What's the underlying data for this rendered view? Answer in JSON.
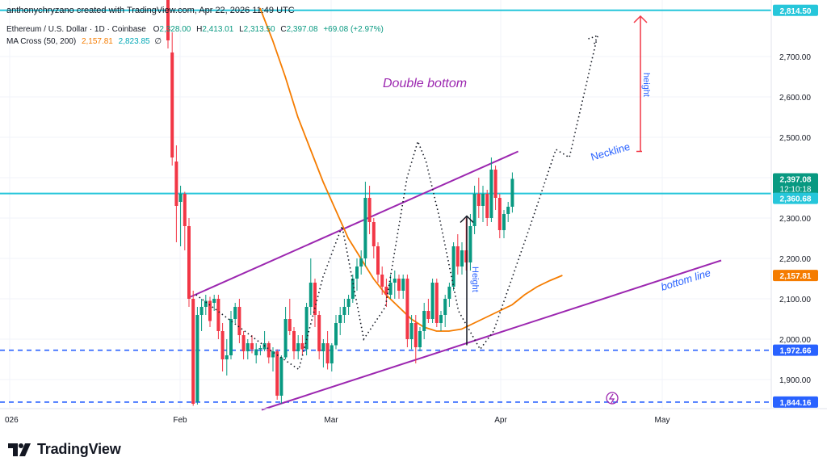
{
  "header": {
    "credit": "anthonychryzano created with TradingView.com, Apr 22, 2026 11:49 UTC",
    "symbol": "Ethereum / U.S. Dollar · 1D · Coinbase",
    "ohlc": {
      "o_label": "O",
      "o_value": "2,328.00",
      "h_label": "H",
      "h_value": "2,413.01",
      "l_label": "L",
      "l_value": "2,313.50",
      "c_label": "C",
      "c_value": "2,397.08",
      "change": "+69.08 (+2.97%)"
    },
    "indicator": {
      "name": "MA Cross (50, 200)",
      "ma_fast": "2,157.81",
      "ma_slow": "2,823.85",
      "symbol": "∅"
    }
  },
  "branding": {
    "logo_text": "TradingView",
    "logo_icon": "tradingview-logo-icon"
  },
  "colors": {
    "up": "#089981",
    "down": "#f23645",
    "ma": "#f57c00",
    "channel": "#9c27b0",
    "level": "#26c6da",
    "support": "#2962ff",
    "arrow_red": "#f23645"
  },
  "chart_data": {
    "type": "candlestick",
    "x_axis": {
      "ticks": [
        "026",
        "Feb",
        "Mar",
        "Apr",
        "May"
      ]
    },
    "y_axis": {
      "range": [
        1830,
        2840
      ],
      "ticks": [
        "2,700.00",
        "2,600.00",
        "2,500.00",
        "2,400.00",
        "2,300.00",
        "2,200.00",
        "2,100.00",
        "2,000.00",
        "1,900.00"
      ]
    },
    "price_labels": [
      {
        "value": 2814.5,
        "text": "2,814.50"
      },
      {
        "value": 2397.08,
        "text": "2,397.08",
        "countdown": "12:10:18"
      },
      {
        "value": 2360.68,
        "text": "2,360.68"
      },
      {
        "value": 2157.81,
        "text": "2,157.81"
      },
      {
        "value": 1972.66,
        "text": "1,972.66"
      },
      {
        "value": 1844.16,
        "text": "1,844.16"
      }
    ],
    "candles": [
      {
        "d": 0,
        "o": 2960,
        "h": 2980,
        "l": 2720,
        "c": 2740
      },
      {
        "d": 1,
        "o": 2710,
        "h": 2760,
        "l": 2430,
        "c": 2450
      },
      {
        "d": 2,
        "o": 2440,
        "h": 2480,
        "l": 2240,
        "c": 2330
      },
      {
        "d": 3,
        "o": 2340,
        "h": 2380,
        "l": 2230,
        "c": 2360
      },
      {
        "d": 4,
        "o": 2360,
        "h": 2365,
        "l": 2220,
        "c": 2280
      },
      {
        "d": 5,
        "o": 2280,
        "h": 2300,
        "l": 2080,
        "c": 2100
      },
      {
        "d": 6,
        "o": 2100,
        "h": 2120,
        "l": 1835,
        "c": 1840
      },
      {
        "d": 7,
        "o": 1845,
        "h": 2080,
        "l": 1838,
        "c": 2060
      },
      {
        "d": 8,
        "o": 2060,
        "h": 2100,
        "l": 2020,
        "c": 2080
      },
      {
        "d": 9,
        "o": 2080,
        "h": 2110,
        "l": 2060,
        "c": 2095
      },
      {
        "d": 10,
        "o": 2095,
        "h": 2105,
        "l": 2030,
        "c": 2045
      },
      {
        "d": 11,
        "o": 2090,
        "h": 2110,
        "l": 2070,
        "c": 2100
      },
      {
        "d": 12,
        "o": 2100,
        "h": 2110,
        "l": 2000,
        "c": 2020
      },
      {
        "d": 13,
        "o": 2020,
        "h": 2040,
        "l": 1920,
        "c": 1950
      },
      {
        "d": 14,
        "o": 1950,
        "h": 2000,
        "l": 1910,
        "c": 1960
      },
      {
        "d": 15,
        "o": 1960,
        "h": 2070,
        "l": 1950,
        "c": 2050
      },
      {
        "d": 16,
        "o": 2050,
        "h": 2090,
        "l": 2040,
        "c": 2080
      },
      {
        "d": 17,
        "o": 2080,
        "h": 2100,
        "l": 1990,
        "c": 2010
      },
      {
        "d": 18,
        "o": 2010,
        "h": 2020,
        "l": 1950,
        "c": 1970
      },
      {
        "d": 19,
        "o": 1970,
        "h": 2000,
        "l": 1950,
        "c": 1990
      },
      {
        "d": 20,
        "o": 1990,
        "h": 2010,
        "l": 1965,
        "c": 1975
      },
      {
        "d": 21,
        "o": 1960,
        "h": 1990,
        "l": 1940,
        "c": 1975
      },
      {
        "d": 22,
        "o": 1975,
        "h": 1985,
        "l": 1960,
        "c": 1978
      },
      {
        "d": 23,
        "o": 1975,
        "h": 2020,
        "l": 1970,
        "c": 1990
      },
      {
        "d": 24,
        "o": 1990,
        "h": 1995,
        "l": 1940,
        "c": 1955
      },
      {
        "d": 25,
        "o": 1955,
        "h": 1980,
        "l": 1920,
        "c": 1970
      },
      {
        "d": 26,
        "o": 1970,
        "h": 1975,
        "l": 1850,
        "c": 1860
      },
      {
        "d": 27,
        "o": 1860,
        "h": 1960,
        "l": 1840,
        "c": 1955
      },
      {
        "d": 28,
        "o": 1955,
        "h": 2080,
        "l": 1950,
        "c": 2050
      },
      {
        "d": 29,
        "o": 2050,
        "h": 2100,
        "l": 2010,
        "c": 2020
      },
      {
        "d": 30,
        "o": 2020,
        "h": 2030,
        "l": 1950,
        "c": 1970
      },
      {
        "d": 31,
        "o": 1970,
        "h": 2010,
        "l": 1950,
        "c": 1990
      },
      {
        "d": 32,
        "o": 1990,
        "h": 2010,
        "l": 1960,
        "c": 1975
      },
      {
        "d": 33,
        "o": 1975,
        "h": 2090,
        "l": 1960,
        "c": 2080
      },
      {
        "d": 34,
        "o": 2080,
        "h": 2200,
        "l": 2060,
        "c": 2140
      },
      {
        "d": 35,
        "o": 2140,
        "h": 2150,
        "l": 2030,
        "c": 2060
      },
      {
        "d": 36,
        "o": 2060,
        "h": 2070,
        "l": 1950,
        "c": 1970
      },
      {
        "d": 37,
        "o": 1970,
        "h": 2000,
        "l": 1930,
        "c": 1990
      },
      {
        "d": 38,
        "o": 1990,
        "h": 2020,
        "l": 1925,
        "c": 1940
      },
      {
        "d": 39,
        "o": 1940,
        "h": 1990,
        "l": 1920,
        "c": 1985
      },
      {
        "d": 40,
        "o": 1985,
        "h": 2060,
        "l": 1975,
        "c": 2040
      },
      {
        "d": 41,
        "o": 2040,
        "h": 2080,
        "l": 2010,
        "c": 2060
      },
      {
        "d": 42,
        "o": 2060,
        "h": 2100,
        "l": 2040,
        "c": 2080
      },
      {
        "d": 43,
        "o": 2080,
        "h": 2110,
        "l": 2060,
        "c": 2100
      },
      {
        "d": 44,
        "o": 2100,
        "h": 2160,
        "l": 2090,
        "c": 2150
      },
      {
        "d": 45,
        "o": 2150,
        "h": 2200,
        "l": 2120,
        "c": 2180
      },
      {
        "d": 46,
        "o": 2180,
        "h": 2220,
        "l": 2160,
        "c": 2200
      },
      {
        "d": 47,
        "o": 2200,
        "h": 2390,
        "l": 2180,
        "c": 2350
      },
      {
        "d": 48,
        "o": 2350,
        "h": 2380,
        "l": 2260,
        "c": 2290
      },
      {
        "d": 49,
        "o": 2290,
        "h": 2300,
        "l": 2200,
        "c": 2230
      },
      {
        "d": 50,
        "o": 2230,
        "h": 2240,
        "l": 2140,
        "c": 2160
      },
      {
        "d": 51,
        "o": 2160,
        "h": 2180,
        "l": 2110,
        "c": 2130
      },
      {
        "d": 52,
        "o": 2130,
        "h": 2150,
        "l": 2080,
        "c": 2110
      },
      {
        "d": 53,
        "o": 2110,
        "h": 2160,
        "l": 2100,
        "c": 2140
      },
      {
        "d": 54,
        "o": 2140,
        "h": 2170,
        "l": 2100,
        "c": 2150
      },
      {
        "d": 55,
        "o": 2150,
        "h": 2160,
        "l": 2100,
        "c": 2120
      },
      {
        "d": 56,
        "o": 2120,
        "h": 2160,
        "l": 2100,
        "c": 2150
      },
      {
        "d": 57,
        "o": 2150,
        "h": 2160,
        "l": 1980,
        "c": 2000
      },
      {
        "d": 58,
        "o": 2000,
        "h": 2060,
        "l": 1975,
        "c": 2040
      },
      {
        "d": 59,
        "o": 2040,
        "h": 2060,
        "l": 1940,
        "c": 1980
      },
      {
        "d": 60,
        "o": 1980,
        "h": 2030,
        "l": 1970,
        "c": 2020
      },
      {
        "d": 61,
        "o": 2020,
        "h": 2090,
        "l": 2000,
        "c": 2070
      },
      {
        "d": 62,
        "o": 2070,
        "h": 2100,
        "l": 2040,
        "c": 2050
      },
      {
        "d": 63,
        "o": 2050,
        "h": 2150,
        "l": 2040,
        "c": 2140
      },
      {
        "d": 64,
        "o": 2140,
        "h": 2150,
        "l": 2030,
        "c": 2040
      },
      {
        "d": 65,
        "o": 2040,
        "h": 2070,
        "l": 2020,
        "c": 2060
      },
      {
        "d": 66,
        "o": 2060,
        "h": 2110,
        "l": 2030,
        "c": 2100
      },
      {
        "d": 67,
        "o": 2100,
        "h": 2140,
        "l": 2080,
        "c": 2130
      },
      {
        "d": 68,
        "o": 2130,
        "h": 2240,
        "l": 2120,
        "c": 2230
      },
      {
        "d": 69,
        "o": 2230,
        "h": 2260,
        "l": 2160,
        "c": 2180
      },
      {
        "d": 70,
        "o": 2180,
        "h": 2240,
        "l": 2160,
        "c": 2220
      },
      {
        "d": 71,
        "o": 2220,
        "h": 2300,
        "l": 2170,
        "c": 2190
      },
      {
        "d": 72,
        "o": 2190,
        "h": 2310,
        "l": 2170,
        "c": 2280
      },
      {
        "d": 73,
        "o": 2280,
        "h": 2380,
        "l": 2260,
        "c": 2360
      },
      {
        "d": 74,
        "o": 2360,
        "h": 2400,
        "l": 2300,
        "c": 2330
      },
      {
        "d": 75,
        "o": 2330,
        "h": 2380,
        "l": 2290,
        "c": 2360
      },
      {
        "d": 76,
        "o": 2360,
        "h": 2370,
        "l": 2280,
        "c": 2300
      },
      {
        "d": 77,
        "o": 2300,
        "h": 2450,
        "l": 2290,
        "c": 2420
      },
      {
        "d": 78,
        "o": 2420,
        "h": 2430,
        "l": 2320,
        "c": 2350
      },
      {
        "d": 79,
        "o": 2350,
        "h": 2360,
        "l": 2250,
        "c": 2270
      },
      {
        "d": 80,
        "o": 2270,
        "h": 2320,
        "l": 2250,
        "c": 2310
      },
      {
        "d": 81,
        "o": 2310,
        "h": 2340,
        "l": 2290,
        "c": 2328
      },
      {
        "d": 82,
        "o": 2328,
        "h": 2413.01,
        "l": 2313.5,
        "c": 2397.08
      }
    ],
    "ma50": [
      [
        35,
        2820
      ],
      [
        38,
        2740
      ],
      [
        41,
        2650
      ],
      [
        44,
        2550
      ],
      [
        47,
        2470
      ],
      [
        50,
        2390
      ],
      [
        53,
        2320
      ],
      [
        56,
        2250
      ],
      [
        59,
        2200
      ],
      [
        62,
        2150
      ],
      [
        65,
        2110
      ],
      [
        68,
        2080
      ],
      [
        71,
        2050
      ],
      [
        74,
        2030
      ],
      [
        77,
        2020
      ],
      [
        80,
        2020
      ],
      [
        83,
        2025
      ],
      [
        86,
        2040
      ],
      [
        89,
        2055
      ],
      [
        92,
        2070
      ],
      [
        95,
        2085
      ],
      [
        98,
        2110
      ],
      [
        101,
        2130
      ],
      [
        104,
        2145
      ],
      [
        107,
        2158
      ]
    ],
    "levels": [
      {
        "value": 2814.5,
        "style": "solid",
        "color": "#26c6da"
      },
      {
        "value": 2360.68,
        "style": "solid",
        "color": "#26c6da"
      },
      {
        "value": 1972.66,
        "style": "dashed",
        "color": "#2962ff"
      },
      {
        "value": 1844.16,
        "style": "dashed",
        "color": "#2962ff"
      }
    ],
    "channel": {
      "upper": [
        [
          30,
          2105
        ],
        [
          108,
          2465
        ]
      ],
      "lower": [
        [
          42,
          1825
        ],
        [
          120,
          2195
        ]
      ]
    },
    "zigzag": [
      [
        32,
        2110
      ],
      [
        60,
        1970
      ],
      [
        70,
        1925
      ],
      [
        79,
        2155
      ],
      [
        86,
        2280
      ],
      [
        94,
        2000
      ],
      [
        102,
        2080
      ],
      [
        110,
        2400
      ],
      [
        114,
        2490
      ],
      [
        117,
        2440
      ],
      [
        122,
        2300
      ],
      [
        129,
        2070
      ],
      [
        137,
        1975
      ],
      [
        142,
        2020
      ],
      [
        156,
        2290
      ],
      [
        165,
        2470
      ],
      [
        170,
        2450
      ],
      [
        180,
        2740
      ]
    ],
    "annotations": [
      {
        "text": "Double bottom",
        "color": "#9c27b0"
      },
      {
        "text": "Neckline",
        "color": "#2962ff"
      },
      {
        "text": "height",
        "color": "#2962ff"
      },
      {
        "text": "Height",
        "color": "#2962ff"
      },
      {
        "text": "bottom line",
        "color": "#2962ff"
      }
    ]
  }
}
